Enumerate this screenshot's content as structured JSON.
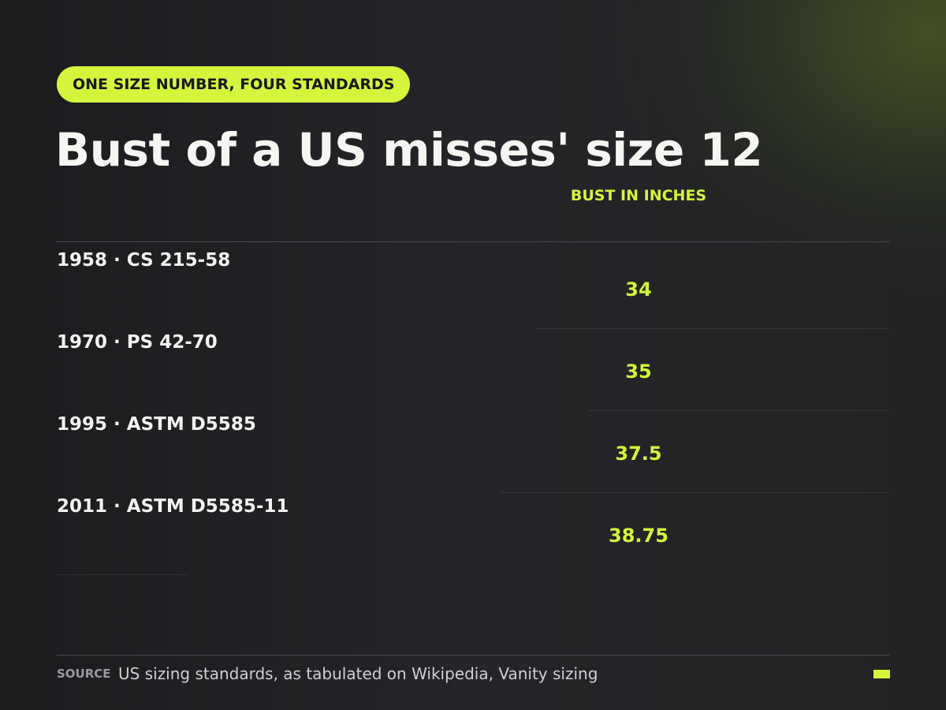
{
  "badge": "ONE SIZE NUMBER, FOUR STANDARDS",
  "title": "Bust of a US misses' size 12",
  "table": {
    "column_header": "BUST IN INCHES",
    "rows": [
      [
        "1958 · CS 215-58",
        34
      ],
      [
        "1970 · PS 42-70",
        35
      ],
      [
        "1995 · ASTM D5585",
        37.5
      ],
      [
        "2011 · ASTM D5585-11",
        38.75
      ]
    ]
  },
  "footer": {
    "source_label": "SOURCE",
    "source": "US sizing standards, as tabulated on Wikipedia, Vanity sizing"
  }
}
